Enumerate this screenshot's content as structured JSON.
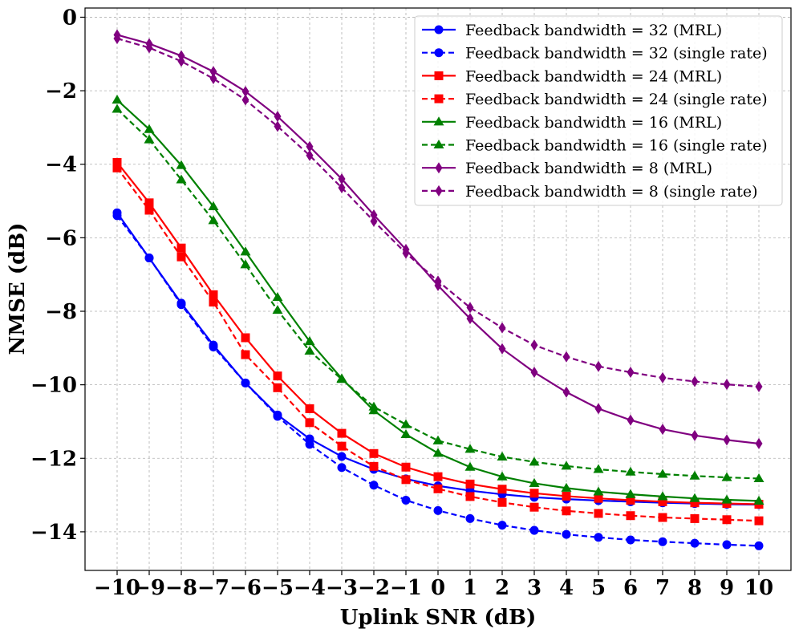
{
  "chart_data": {
    "type": "line",
    "title": "",
    "xlabel": "Uplink SNR (dB)",
    "ylabel": "NMSE (dB)",
    "xlim": [
      -11,
      11
    ],
    "ylim": [
      -15.05,
      0.25
    ],
    "grid": true,
    "legend_position": "top-right",
    "x": [
      -10,
      -9,
      -8,
      -7,
      -6,
      -5,
      -4,
      -3,
      -2,
      -1,
      0,
      1,
      2,
      3,
      4,
      5,
      6,
      7,
      8,
      9,
      10
    ],
    "x_tick_labels": [
      "−10",
      "−9",
      "−8",
      "−7",
      "−6",
      "−5",
      "−4",
      "−3",
      "−2",
      "−1",
      "0",
      "1",
      "2",
      "3",
      "4",
      "5",
      "6",
      "7",
      "8",
      "9",
      "10"
    ],
    "y_ticks": [
      0,
      -2,
      -4,
      -6,
      -8,
      -10,
      -12,
      -14
    ],
    "y_tick_labels": [
      "0",
      "−2",
      "−4",
      "−6",
      "−8",
      "−10",
      "−12",
      "−14"
    ],
    "series": [
      {
        "name": "Feedback bandwidth = 32 (MRL)",
        "color": "#0000ff",
        "dash": "solid",
        "marker": "circle",
        "values": [
          -5.32,
          -6.55,
          -7.78,
          -8.92,
          -9.95,
          -10.82,
          -11.47,
          -11.95,
          -12.3,
          -12.56,
          -12.75,
          -12.88,
          -12.98,
          -13.06,
          -13.11,
          -13.15,
          -13.18,
          -13.21,
          -13.23,
          -13.25,
          -13.26
        ]
      },
      {
        "name": "Feedback bandwidth = 32 (single rate)",
        "color": "#0000ff",
        "dash": "dashed",
        "marker": "circle",
        "values": [
          -5.4,
          -6.55,
          -7.82,
          -8.97,
          -9.95,
          -10.86,
          -11.62,
          -12.25,
          -12.73,
          -13.14,
          -13.42,
          -13.64,
          -13.82,
          -13.96,
          -14.07,
          -14.15,
          -14.22,
          -14.27,
          -14.31,
          -14.35,
          -14.38
        ]
      },
      {
        "name": "Feedback bandwidth = 24 (MRL)",
        "color": "#ff0000",
        "dash": "solid",
        "marker": "square",
        "values": [
          -3.95,
          -5.05,
          -6.28,
          -7.55,
          -8.72,
          -9.76,
          -10.65,
          -11.32,
          -11.87,
          -12.24,
          -12.5,
          -12.7,
          -12.84,
          -12.95,
          -13.03,
          -13.09,
          -13.14,
          -13.18,
          -13.21,
          -13.23,
          -13.25
        ]
      },
      {
        "name": "Feedback bandwidth = 24 (single rate)",
        "color": "#ff0000",
        "dash": "dashed",
        "marker": "square",
        "values": [
          -4.1,
          -5.25,
          -6.52,
          -7.75,
          -9.18,
          -10.08,
          -11.03,
          -11.67,
          -12.22,
          -12.58,
          -12.83,
          -13.04,
          -13.2,
          -13.33,
          -13.43,
          -13.5,
          -13.56,
          -13.61,
          -13.64,
          -13.67,
          -13.7
        ]
      },
      {
        "name": "Feedback bandwidth = 16 (MRL)",
        "color": "#008000",
        "dash": "solid",
        "marker": "triangle",
        "values": [
          -2.25,
          -3.05,
          -4.03,
          -5.15,
          -6.38,
          -7.62,
          -8.82,
          -9.83,
          -10.7,
          -11.35,
          -11.86,
          -12.24,
          -12.5,
          -12.68,
          -12.81,
          -12.91,
          -12.98,
          -13.04,
          -13.09,
          -13.13,
          -13.16
        ]
      },
      {
        "name": "Feedback bandwidth = 16 (single rate)",
        "color": "#008000",
        "dash": "dashed",
        "marker": "triangle",
        "values": [
          -2.5,
          -3.33,
          -4.42,
          -5.53,
          -6.73,
          -7.97,
          -9.08,
          -9.85,
          -10.6,
          -11.08,
          -11.52,
          -11.75,
          -11.96,
          -12.1,
          -12.21,
          -12.3,
          -12.37,
          -12.43,
          -12.48,
          -12.52,
          -12.55
        ]
      },
      {
        "name": "Feedback bandwidth = 8 (MRL)",
        "color": "#800080",
        "dash": "solid",
        "marker": "diamond",
        "values": [
          -0.48,
          -0.72,
          -1.05,
          -1.48,
          -2.02,
          -2.7,
          -3.52,
          -4.4,
          -5.38,
          -6.32,
          -7.3,
          -8.2,
          -9.02,
          -9.66,
          -10.2,
          -10.65,
          -10.96,
          -11.21,
          -11.38,
          -11.5,
          -11.6
        ]
      },
      {
        "name": "Feedback bandwidth = 8 (single rate)",
        "color": "#800080",
        "dash": "dashed",
        "marker": "diamond",
        "values": [
          -0.58,
          -0.83,
          -1.2,
          -1.67,
          -2.25,
          -2.97,
          -3.76,
          -4.64,
          -5.55,
          -6.42,
          -7.18,
          -7.9,
          -8.45,
          -8.92,
          -9.24,
          -9.5,
          -9.66,
          -9.81,
          -9.91,
          -9.99,
          -10.05
        ]
      }
    ]
  }
}
